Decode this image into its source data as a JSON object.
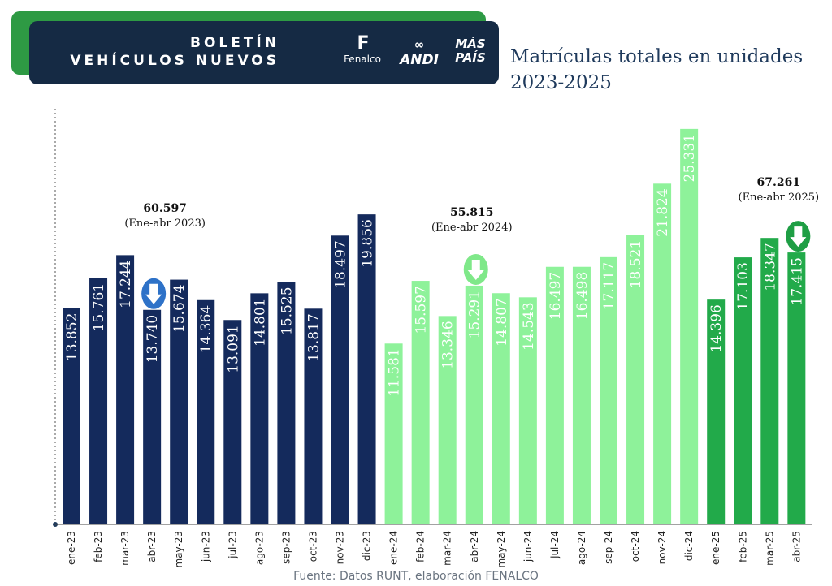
{
  "header": {
    "title_line1": "BOLETÍN",
    "title_line2": "VEHÍCULOS NUEVOS",
    "logos": {
      "fenalco_mark": "F",
      "fenalco": "Fenalco",
      "andi_mark": "∞",
      "andi": "ANDI",
      "maspais_line1": "MÁS",
      "maspais_line2": "PAÍS"
    }
  },
  "colors": {
    "series_2023": "#142a5c",
    "series_2024": "#8ef29a",
    "series_2025": "#22aa4a",
    "arrow_2023": "#2e72c8",
    "arrow_2024": "#7fe889",
    "arrow_2025": "#1e9e44"
  },
  "chart_data": {
    "type": "bar",
    "title_line1": "Matrículas totales en unidades",
    "title_line2": "2023-2025",
    "categories": [
      "ene-23",
      "feb-23",
      "mar-23",
      "abr-23",
      "may-23",
      "jun-23",
      "jul-23",
      "ago-23",
      "sep-23",
      "oct-23",
      "nov-23",
      "dic-23",
      "ene-24",
      "feb-24",
      "mar-24",
      "abr-24",
      "may-24",
      "jun-24",
      "jul-24",
      "ago-24",
      "sep-24",
      "oct-24",
      "nov-24",
      "dic-24",
      "ene-25",
      "feb-25",
      "mar-25",
      "abr-25"
    ],
    "values": [
      13852,
      15761,
      17244,
      13740,
      15674,
      14364,
      13091,
      14801,
      15525,
      13817,
      18497,
      19856,
      11581,
      15597,
      13346,
      15291,
      14807,
      14543,
      16497,
      16498,
      17117,
      18521,
      21824,
      25331,
      14396,
      17103,
      18347,
      17415
    ],
    "value_labels": [
      "13.852",
      "15.761",
      "17.244",
      "13.740",
      "15.674",
      "14.364",
      "13.091",
      "14.801",
      "15.525",
      "13.817",
      "18.497",
      "19.856",
      "11.581",
      "15.597",
      "13.346",
      "15.291",
      "14.807",
      "14.543",
      "16.497",
      "16.498",
      "17.117",
      "18.521",
      "21.824",
      "25.331",
      "14.396",
      "17.103",
      "18.347",
      "17.415"
    ],
    "year_groups": [
      "2023",
      "2023",
      "2023",
      "2023",
      "2023",
      "2023",
      "2023",
      "2023",
      "2023",
      "2023",
      "2023",
      "2023",
      "2024",
      "2024",
      "2024",
      "2024",
      "2024",
      "2024",
      "2024",
      "2024",
      "2024",
      "2024",
      "2024",
      "2024",
      "2025",
      "2025",
      "2025",
      "2025"
    ],
    "ylim": [
      0,
      26000
    ],
    "xlabel": "",
    "ylabel": "",
    "annotations": [
      {
        "total": "60.597",
        "period": "(Ene-abr 2023)",
        "group": "2023"
      },
      {
        "total": "55.815",
        "period": "(Ene-abr 2024)",
        "group": "2024"
      },
      {
        "total": "67.261",
        "period": "(Ene-abr 2025)",
        "group": "2025"
      }
    ]
  },
  "source": "Fuente: Datos RUNT, elaboración FENALCO"
}
